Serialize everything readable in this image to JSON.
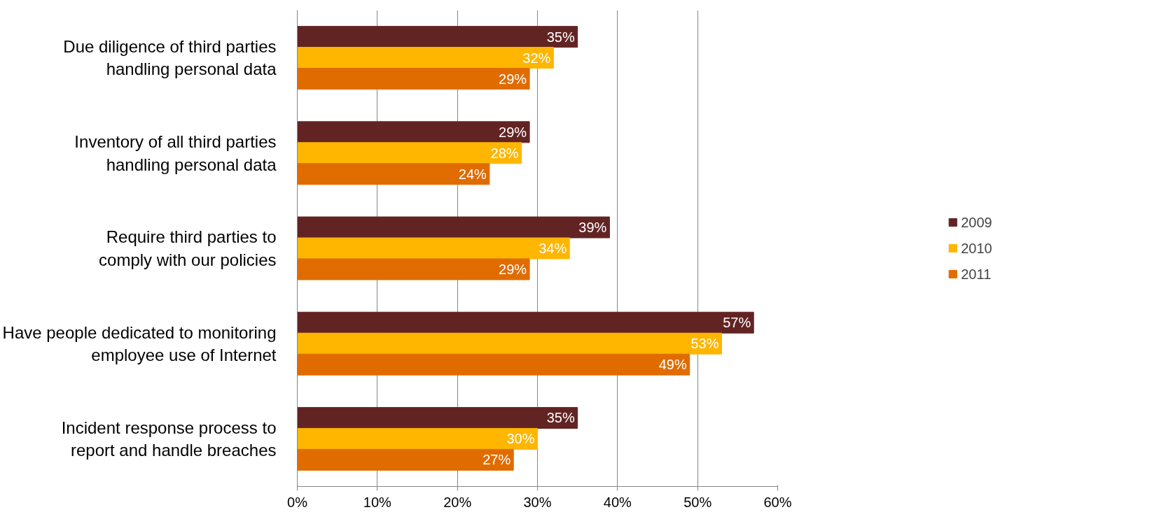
{
  "chart_data": {
    "type": "bar",
    "orientation": "horizontal",
    "categories": [
      "Due diligence of third parties\nhandling personal data",
      "Inventory of all third parties\nhandling personal data",
      "Require third parties to\ncomply with our policies",
      "Have people dedicated to monitoring\nemployee use of Internet",
      "Incident response process to\nreport and handle breaches"
    ],
    "series": [
      {
        "name": "2009",
        "color": "#622423",
        "values": [
          35,
          29,
          39,
          57,
          35
        ]
      },
      {
        "name": "2010",
        "color": "#ffb600",
        "values": [
          32,
          28,
          34,
          53,
          30
        ]
      },
      {
        "name": "2011",
        "color": "#e06c00",
        "values": [
          29,
          24,
          29,
          49,
          27
        ]
      }
    ],
    "xlim": [
      0,
      60
    ],
    "xticks": [
      {
        "value": 0,
        "label": "0%"
      },
      {
        "value": 10,
        "label": "10%"
      },
      {
        "value": 20,
        "label": "20%"
      },
      {
        "value": 30,
        "label": "30%"
      },
      {
        "value": 40,
        "label": "40%"
      },
      {
        "value": 50,
        "label": "50%"
      },
      {
        "value": 60,
        "label": "60%"
      }
    ],
    "value_labels": [
      [
        "35%",
        "29%",
        "39%",
        "57%",
        "35%"
      ],
      [
        "32%",
        "28%",
        "34%",
        "53%",
        "30%"
      ],
      [
        "29%",
        "24%",
        "29%",
        "49%",
        "27%"
      ]
    ],
    "grid": "x",
    "legend": "right"
  }
}
